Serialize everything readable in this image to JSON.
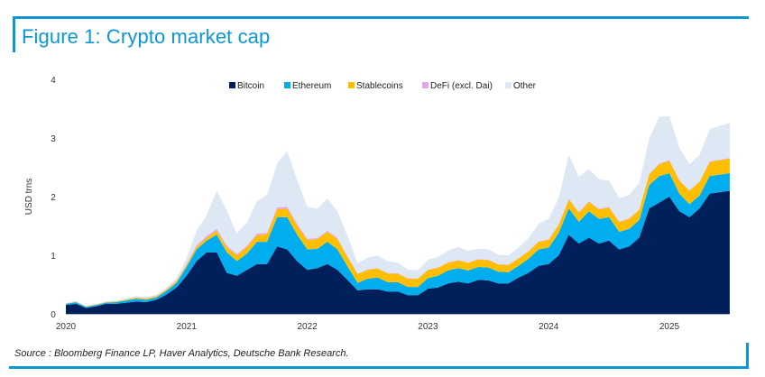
{
  "header": {
    "title": "Figure 1: Crypto market cap"
  },
  "footer": {
    "source": "Source : Bloomberg Finance LP, Haver Analytics, Deutsche Bank Research."
  },
  "colors": {
    "accent": "#0b97d6",
    "bitcoin": "#00205b",
    "ethereum": "#00aeef",
    "stablecoins": "#ffbf00",
    "defi": "#e6a6e6",
    "other": "#dde8f4"
  },
  "chart_data": {
    "type": "area",
    "stacked": true,
    "title": "Figure 1: Crypto market cap",
    "xlabel": "",
    "ylabel": "USD trns",
    "ylim": [
      0,
      4
    ],
    "yticks": [
      0,
      1,
      2,
      3,
      4
    ],
    "xticks": [
      "2020",
      "2021",
      "2022",
      "2023",
      "2024",
      "2025"
    ],
    "xrange": [
      "2020-01",
      "2025-06"
    ],
    "grid": false,
    "legend": "top-center",
    "x": [
      "2020-01",
      "2020-02",
      "2020-03",
      "2020-04",
      "2020-05",
      "2020-06",
      "2020-07",
      "2020-08",
      "2020-09",
      "2020-10",
      "2020-11",
      "2020-12",
      "2021-01",
      "2021-02",
      "2021-03",
      "2021-04",
      "2021-05",
      "2021-06",
      "2021-07",
      "2021-08",
      "2021-09",
      "2021-10",
      "2021-11",
      "2021-12",
      "2022-01",
      "2022-02",
      "2022-03",
      "2022-04",
      "2022-05",
      "2022-06",
      "2022-07",
      "2022-08",
      "2022-09",
      "2022-10",
      "2022-11",
      "2022-12",
      "2023-01",
      "2023-02",
      "2023-03",
      "2023-04",
      "2023-05",
      "2023-06",
      "2023-07",
      "2023-08",
      "2023-09",
      "2023-10",
      "2023-11",
      "2023-12",
      "2024-01",
      "2024-02",
      "2024-03",
      "2024-04",
      "2024-05",
      "2024-06",
      "2024-07",
      "2024-08",
      "2024-09",
      "2024-10",
      "2024-11",
      "2024-12",
      "2025-01",
      "2025-02",
      "2025-03",
      "2025-04",
      "2025-05",
      "2025-06"
    ],
    "series": [
      {
        "name": "Bitcoin",
        "values": [
          0.15,
          0.17,
          0.1,
          0.13,
          0.17,
          0.17,
          0.19,
          0.21,
          0.2,
          0.24,
          0.33,
          0.45,
          0.65,
          0.9,
          1.05,
          1.05,
          0.7,
          0.65,
          0.75,
          0.85,
          0.85,
          1.15,
          1.1,
          0.9,
          0.75,
          0.78,
          0.85,
          0.75,
          0.58,
          0.4,
          0.42,
          0.42,
          0.38,
          0.38,
          0.32,
          0.32,
          0.43,
          0.45,
          0.52,
          0.55,
          0.52,
          0.58,
          0.57,
          0.52,
          0.52,
          0.62,
          0.7,
          0.82,
          0.85,
          1.0,
          1.35,
          1.2,
          1.3,
          1.2,
          1.25,
          1.1,
          1.15,
          1.3,
          1.8,
          1.9,
          2.0,
          1.75,
          1.65,
          1.8,
          2.05,
          2.1
        ]
      },
      {
        "name": "Ethereum",
        "values": [
          0.02,
          0.03,
          0.02,
          0.02,
          0.02,
          0.03,
          0.04,
          0.05,
          0.04,
          0.04,
          0.06,
          0.08,
          0.15,
          0.2,
          0.2,
          0.3,
          0.35,
          0.25,
          0.28,
          0.38,
          0.38,
          0.5,
          0.55,
          0.45,
          0.35,
          0.33,
          0.38,
          0.35,
          0.23,
          0.13,
          0.18,
          0.2,
          0.16,
          0.16,
          0.14,
          0.14,
          0.18,
          0.2,
          0.22,
          0.23,
          0.22,
          0.22,
          0.22,
          0.2,
          0.19,
          0.2,
          0.24,
          0.28,
          0.28,
          0.38,
          0.45,
          0.37,
          0.45,
          0.42,
          0.4,
          0.3,
          0.3,
          0.3,
          0.4,
          0.45,
          0.4,
          0.3,
          0.22,
          0.22,
          0.3,
          0.3
        ]
      },
      {
        "name": "Stablecoins",
        "values": [
          0.005,
          0.006,
          0.008,
          0.01,
          0.01,
          0.012,
          0.013,
          0.015,
          0.018,
          0.02,
          0.022,
          0.028,
          0.035,
          0.045,
          0.055,
          0.065,
          0.085,
          0.1,
          0.11,
          0.115,
          0.125,
          0.135,
          0.145,
          0.155,
          0.16,
          0.165,
          0.17,
          0.175,
          0.16,
          0.15,
          0.15,
          0.15,
          0.148,
          0.146,
          0.142,
          0.138,
          0.138,
          0.136,
          0.132,
          0.13,
          0.13,
          0.128,
          0.125,
          0.124,
          0.124,
          0.124,
          0.126,
          0.13,
          0.132,
          0.138,
          0.15,
          0.155,
          0.16,
          0.162,
          0.164,
          0.166,
          0.17,
          0.172,
          0.18,
          0.2,
          0.21,
          0.22,
          0.228,
          0.232,
          0.24,
          0.25
        ]
      },
      {
        "name": "DeFi (excl. Dai)",
        "values": [
          0.001,
          0.001,
          0.001,
          0.001,
          0.001,
          0.002,
          0.003,
          0.008,
          0.008,
          0.006,
          0.008,
          0.01,
          0.015,
          0.025,
          0.025,
          0.035,
          0.03,
          0.02,
          0.02,
          0.025,
          0.025,
          0.03,
          0.035,
          0.028,
          0.02,
          0.018,
          0.02,
          0.018,
          0.012,
          0.007,
          0.008,
          0.008,
          0.007,
          0.007,
          0.006,
          0.005,
          0.006,
          0.007,
          0.007,
          0.008,
          0.007,
          0.006,
          0.006,
          0.005,
          0.005,
          0.006,
          0.007,
          0.009,
          0.009,
          0.011,
          0.015,
          0.012,
          0.012,
          0.011,
          0.01,
          0.009,
          0.009,
          0.01,
          0.012,
          0.014,
          0.013,
          0.01,
          0.008,
          0.008,
          0.01,
          0.01
        ]
      },
      {
        "name": "Other",
        "values": [
          0.01,
          0.01,
          0.01,
          0.01,
          0.01,
          0.01,
          0.02,
          0.02,
          0.02,
          0.02,
          0.03,
          0.04,
          0.1,
          0.25,
          0.35,
          0.65,
          0.6,
          0.35,
          0.4,
          0.55,
          0.65,
          0.75,
          0.95,
          0.75,
          0.55,
          0.5,
          0.55,
          0.45,
          0.35,
          0.18,
          0.2,
          0.22,
          0.2,
          0.18,
          0.15,
          0.14,
          0.17,
          0.18,
          0.2,
          0.22,
          0.2,
          0.18,
          0.18,
          0.16,
          0.16,
          0.18,
          0.22,
          0.3,
          0.35,
          0.45,
          0.75,
          0.6,
          0.55,
          0.5,
          0.45,
          0.4,
          0.4,
          0.45,
          0.6,
          0.8,
          0.75,
          0.55,
          0.45,
          0.45,
          0.55,
          0.6
        ]
      }
    ]
  }
}
